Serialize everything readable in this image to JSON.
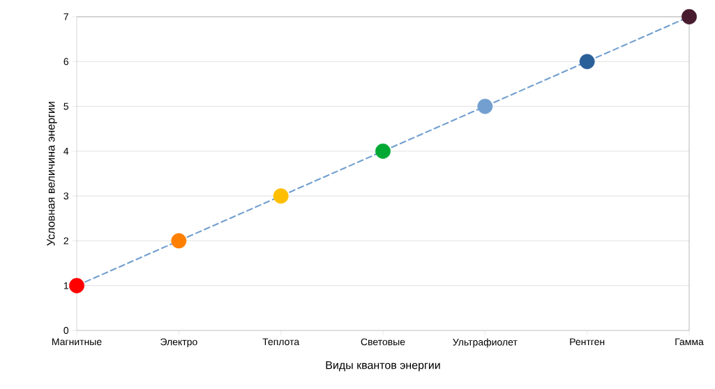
{
  "chart_data": {
    "type": "line",
    "xlabel": "Виды квантов энергии",
    "ylabel": "Условная величина энергии",
    "categories": [
      "Магнитные",
      "Электро",
      "Теплота",
      "Световые",
      "Ультрафиолет",
      "Рентген",
      "Гамма"
    ],
    "values": [
      1,
      2,
      3,
      4,
      5,
      6,
      7
    ],
    "color": "#729fcf",
    "colors": [
      "#ff0000",
      "#ff8000",
      "#ffbf00",
      "#00a933",
      "#729fcf",
      "#2a6099",
      "#481b2f"
    ],
    "line_style": "dashed",
    "marker": "circle",
    "ylim": [
      0,
      7
    ],
    "yticks": [
      0,
      1,
      2,
      3,
      4,
      5,
      6,
      7
    ],
    "grid": "y"
  }
}
